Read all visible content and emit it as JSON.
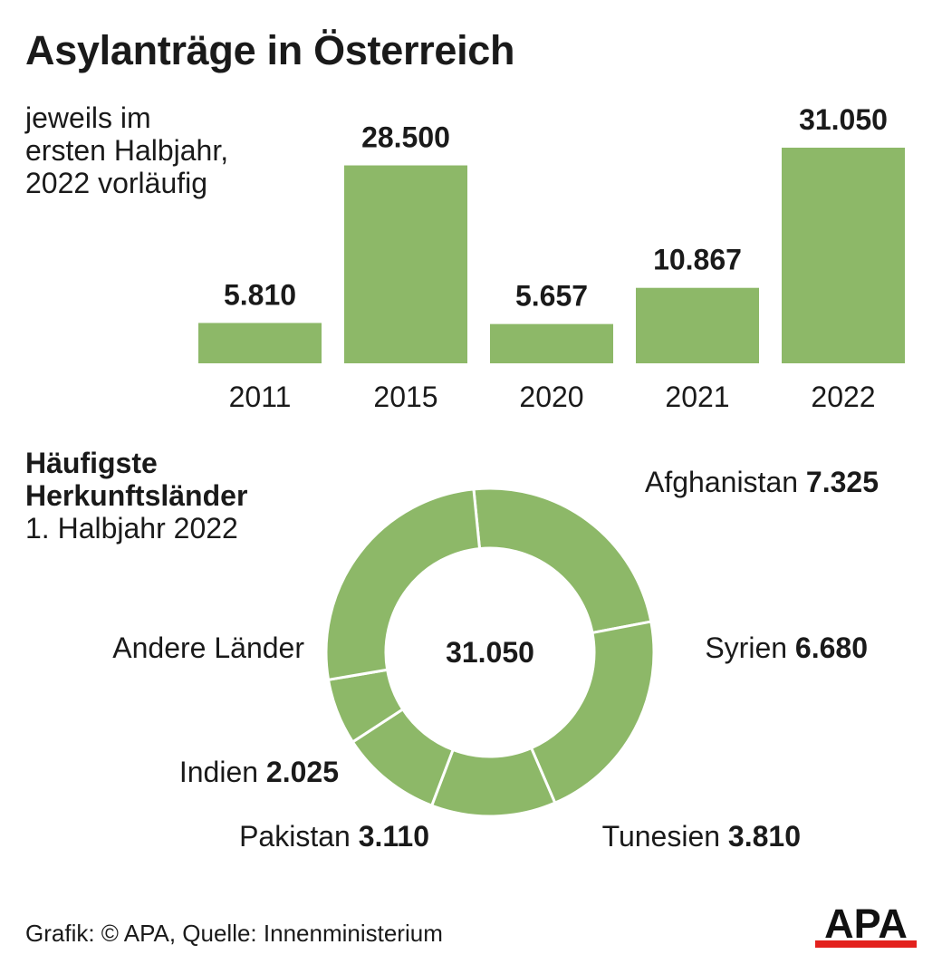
{
  "title": "Asylanträge in Österreich",
  "subtitle_lines": [
    "jeweils im",
    "ersten Halbjahr,",
    "2022 vorläufig"
  ],
  "colors": {
    "bar": "#8db868",
    "text": "#1a1a1a",
    "apa_red": "#e3211d"
  },
  "chart_data": [
    {
      "type": "bar",
      "categories": [
        "2011",
        "2015",
        "2020",
        "2021",
        "2022"
      ],
      "values": [
        5810,
        28500,
        5657,
        10867,
        31050
      ],
      "value_labels": [
        "5.810",
        "28.500",
        "5.657",
        "10.867",
        "31.050"
      ],
      "title": "Asylanträge in Österreich",
      "subtitle": "jeweils im ersten Halbjahr, 2022 vorläufig",
      "grid": false
    },
    {
      "type": "pie",
      "title_lines": [
        "Häufigste",
        "Herkunftsländer"
      ],
      "subtitle": "1. Halbjahr 2022",
      "center_label": "31.050",
      "total": 31050,
      "slices": [
        {
          "name": "Afghanistan",
          "value": 7325,
          "value_label": "7.325"
        },
        {
          "name": "Syrien",
          "value": 6680,
          "value_label": "6.680"
        },
        {
          "name": "Tunesien",
          "value": 3810,
          "value_label": "3.810"
        },
        {
          "name": "Pakistan",
          "value": 3110,
          "value_label": "3.110"
        },
        {
          "name": "Indien",
          "value": 2025,
          "value_label": "2.025"
        },
        {
          "name": "Andere Länder",
          "value": 8100,
          "value_label": ""
        }
      ]
    }
  ],
  "footer": {
    "source": "Grafik: © APA, Quelle: Innenministerium",
    "logo_text": "APA"
  }
}
